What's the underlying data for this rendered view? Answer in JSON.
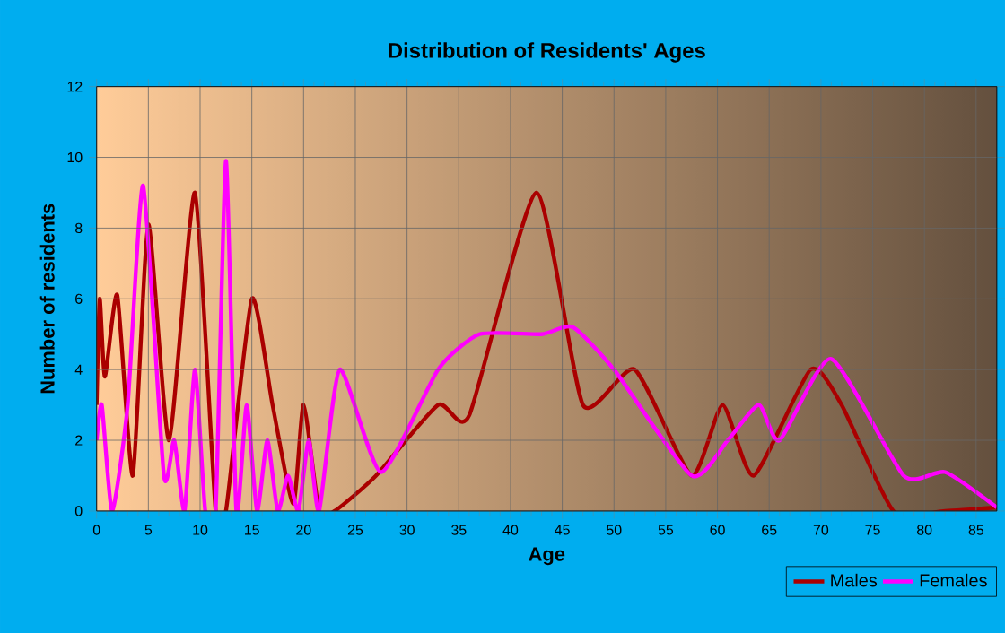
{
  "chart_data": {
    "type": "line",
    "title": "Distribution of Residents' Ages",
    "xlabel": "Age",
    "ylabel": "Number of residents",
    "xlim": [
      0,
      87
    ],
    "ylim": [
      0,
      12
    ],
    "xticks": [
      0,
      5,
      10,
      15,
      20,
      25,
      30,
      35,
      40,
      45,
      50,
      55,
      60,
      65,
      70,
      75,
      80,
      85
    ],
    "yticks": [
      0,
      2,
      4,
      6,
      8,
      10,
      12
    ],
    "grid": true,
    "legend": "bottom right",
    "marker": "none",
    "line_style": "solid",
    "series": [
      {
        "name": "Males",
        "color": "#aa0000",
        "x": [
          0,
          0.3,
          0.8,
          2,
          3.5,
          5,
          7,
          9.5,
          11.5,
          12.5,
          15,
          17,
          19,
          20,
          21.5,
          23,
          27,
          33,
          36,
          42.5,
          47,
          52,
          57.5,
          60.5,
          63.5,
          69,
          72,
          77,
          82,
          87
        ],
        "values": [
          3,
          6,
          3.8,
          6.1,
          1,
          8.1,
          2,
          9,
          0,
          0,
          6,
          3,
          0.2,
          3,
          0,
          0,
          1,
          3,
          2.7,
          9,
          3,
          4,
          1,
          3,
          1,
          4,
          3,
          0,
          0,
          0.1
        ]
      },
      {
        "name": "Females",
        "color": "#ff00ff",
        "x": [
          0,
          0.5,
          1.5,
          3,
          4.5,
          6.5,
          7.5,
          8.5,
          9.5,
          10.5,
          11.5,
          12.5,
          13.5,
          14.5,
          15.5,
          16.5,
          17.5,
          18.5,
          19.5,
          20.5,
          21.5,
          23.5,
          27.5,
          33,
          37,
          43,
          46,
          50,
          57.5,
          61,
          64,
          66,
          71,
          78,
          82,
          87
        ],
        "values": [
          2,
          3,
          0,
          3,
          9.2,
          1,
          2,
          0,
          4,
          0,
          0,
          9.9,
          0,
          3,
          0,
          2,
          0,
          1,
          0,
          2,
          0,
          4,
          1.1,
          4,
          5,
          5,
          5.2,
          4,
          1,
          2,
          3,
          2,
          4.3,
          1,
          1.1,
          0.1
        ]
      }
    ]
  }
}
